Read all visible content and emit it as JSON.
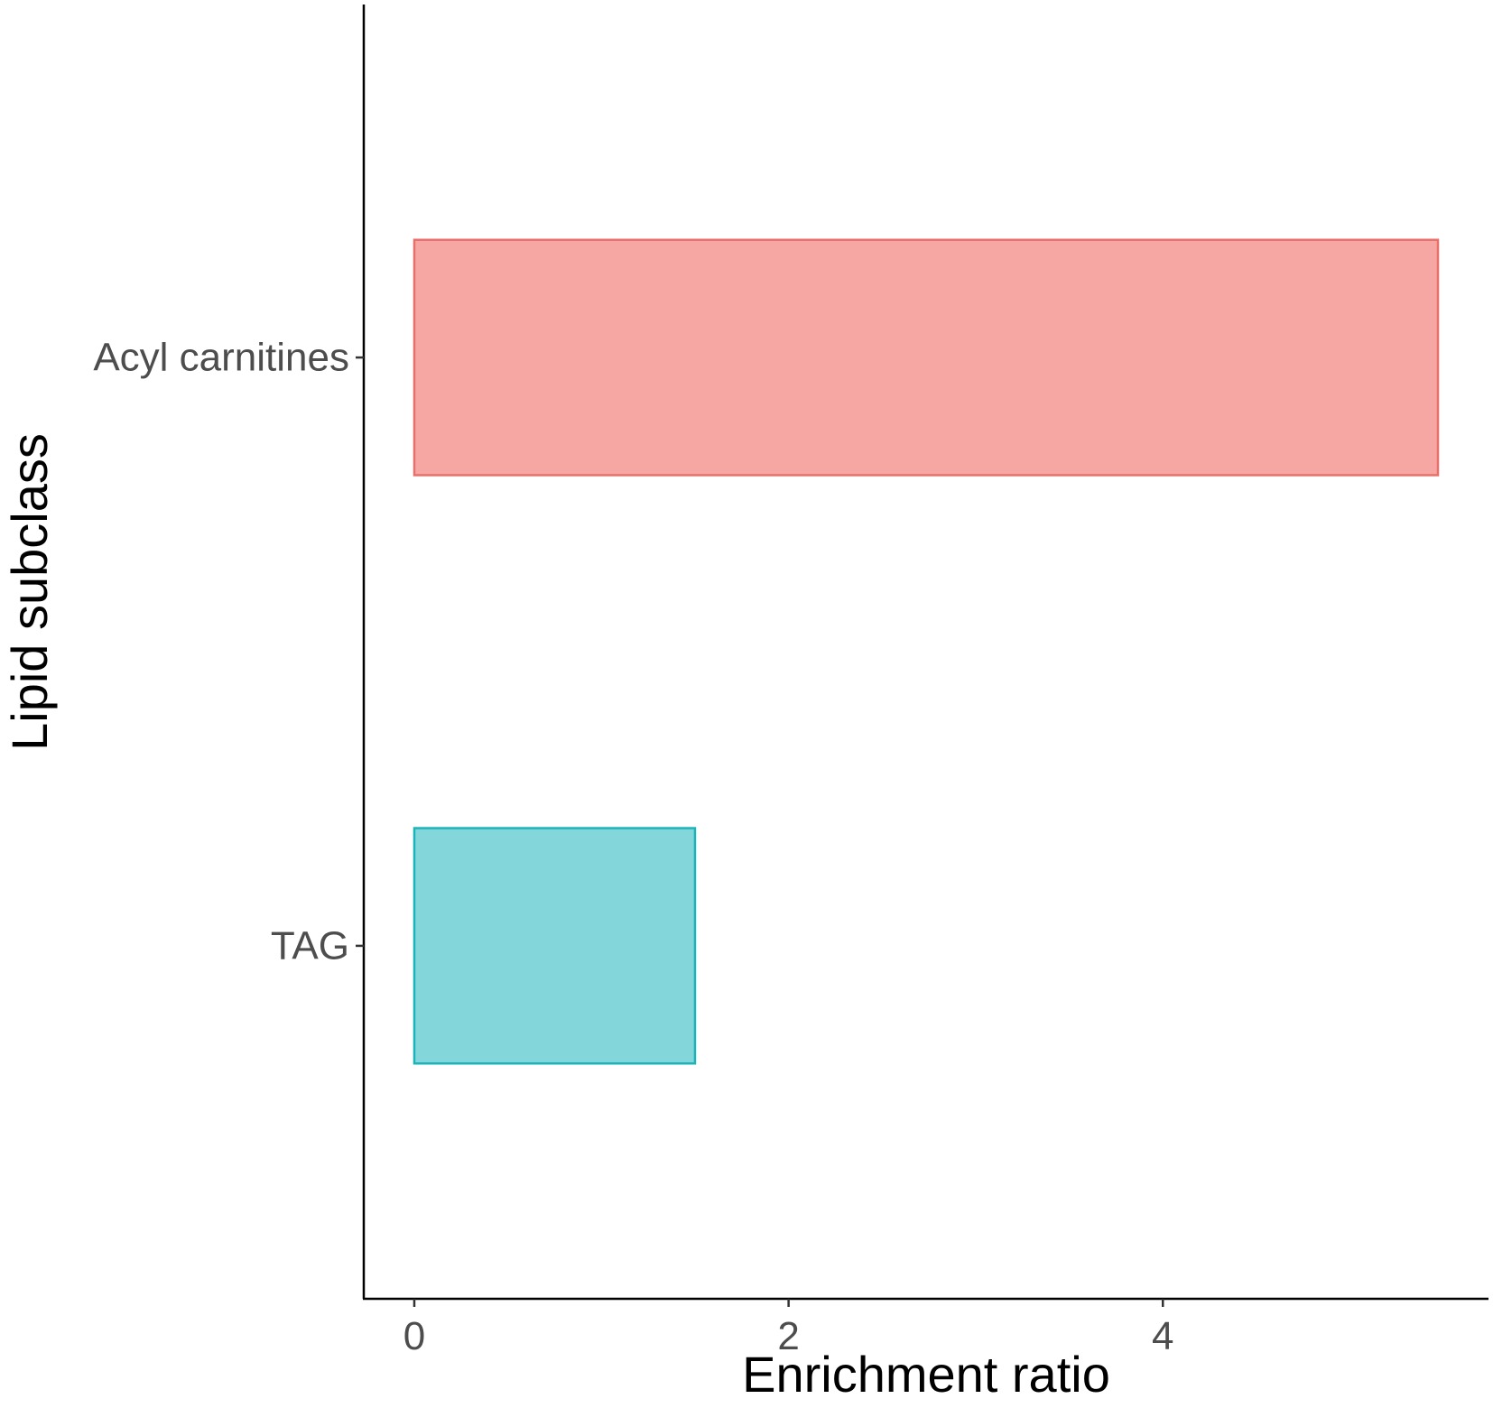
{
  "chart_data": {
    "type": "bar",
    "orientation": "horizontal",
    "categories": [
      "Acyl carnitines",
      "TAG"
    ],
    "values": [
      5.47,
      1.5
    ],
    "colors": {
      "Acyl carnitines": {
        "fill": "#F7A7A3",
        "stroke": "#E8706A"
      },
      "TAG": {
        "fill": "#83D6D9",
        "stroke": "#1CB4BB"
      }
    },
    "xlabel": "Enrichment ratio",
    "ylabel": "Lipid subclass",
    "xlim": [
      -0.27,
      5.74
    ],
    "xticks": [
      0,
      2,
      4
    ],
    "xtick_labels": [
      "0",
      "2",
      "4"
    ],
    "grid": false,
    "legend": "none"
  }
}
